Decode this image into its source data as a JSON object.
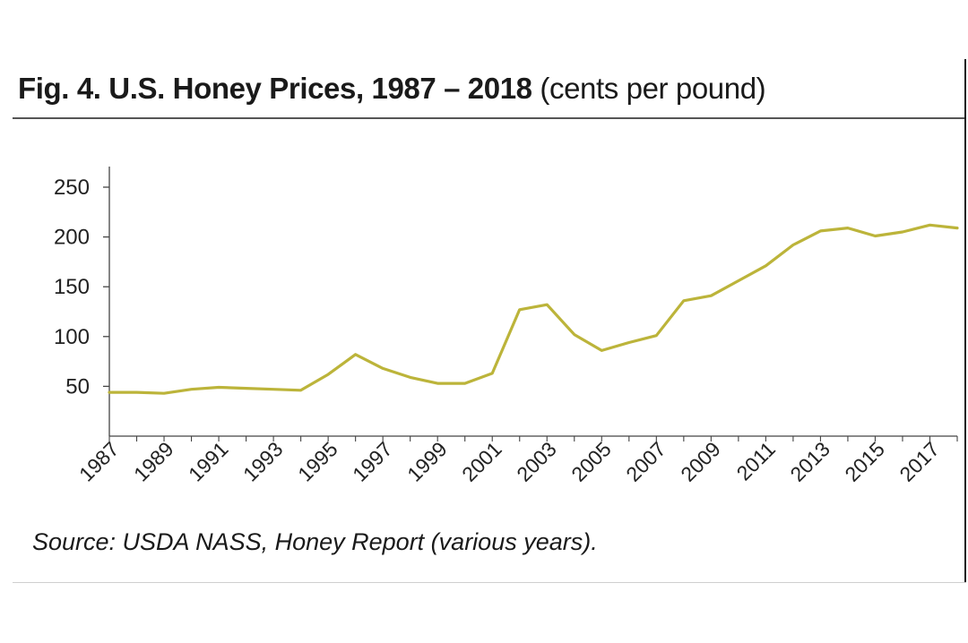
{
  "figure": {
    "title": "Fig. 4. U.S. Honey Prices, 1987 – 2018",
    "title_units": "(cents per pound)",
    "source": "Source: USDA NASS, Honey Report (various years)."
  },
  "chart_data": {
    "type": "line",
    "title": "Fig. 4. U.S. Honey Prices, 1987 – 2018",
    "subtitle": "(cents per pound)",
    "xlabel": "",
    "ylabel": "",
    "line_color": "#bcb43a",
    "grid": false,
    "legend": "none",
    "ylim": [
      0,
      260
    ],
    "y_ticks": [
      50,
      100,
      150,
      200,
      250
    ],
    "x_tick_labels": [
      "1987",
      "1989",
      "1991",
      "1993",
      "1995",
      "1997",
      "1999",
      "2001",
      "2003",
      "2005",
      "2007",
      "2009",
      "2011",
      "2013",
      "2015",
      "2017"
    ],
    "x": [
      1987,
      1988,
      1989,
      1990,
      1991,
      1992,
      1993,
      1994,
      1995,
      1996,
      1997,
      1998,
      1999,
      2000,
      2001,
      2002,
      2003,
      2004,
      2005,
      2006,
      2007,
      2008,
      2009,
      2010,
      2011,
      2012,
      2013,
      2014,
      2015,
      2016,
      2017,
      2018
    ],
    "series": [
      {
        "values": [
          44,
          44,
          43,
          47,
          49,
          48,
          47,
          46,
          62,
          82,
          68,
          59,
          53,
          53,
          63,
          127,
          132,
          102,
          86,
          94,
          101,
          136,
          141,
          156,
          171,
          192,
          206,
          209,
          201,
          205,
          212,
          209
        ]
      }
    ]
  }
}
